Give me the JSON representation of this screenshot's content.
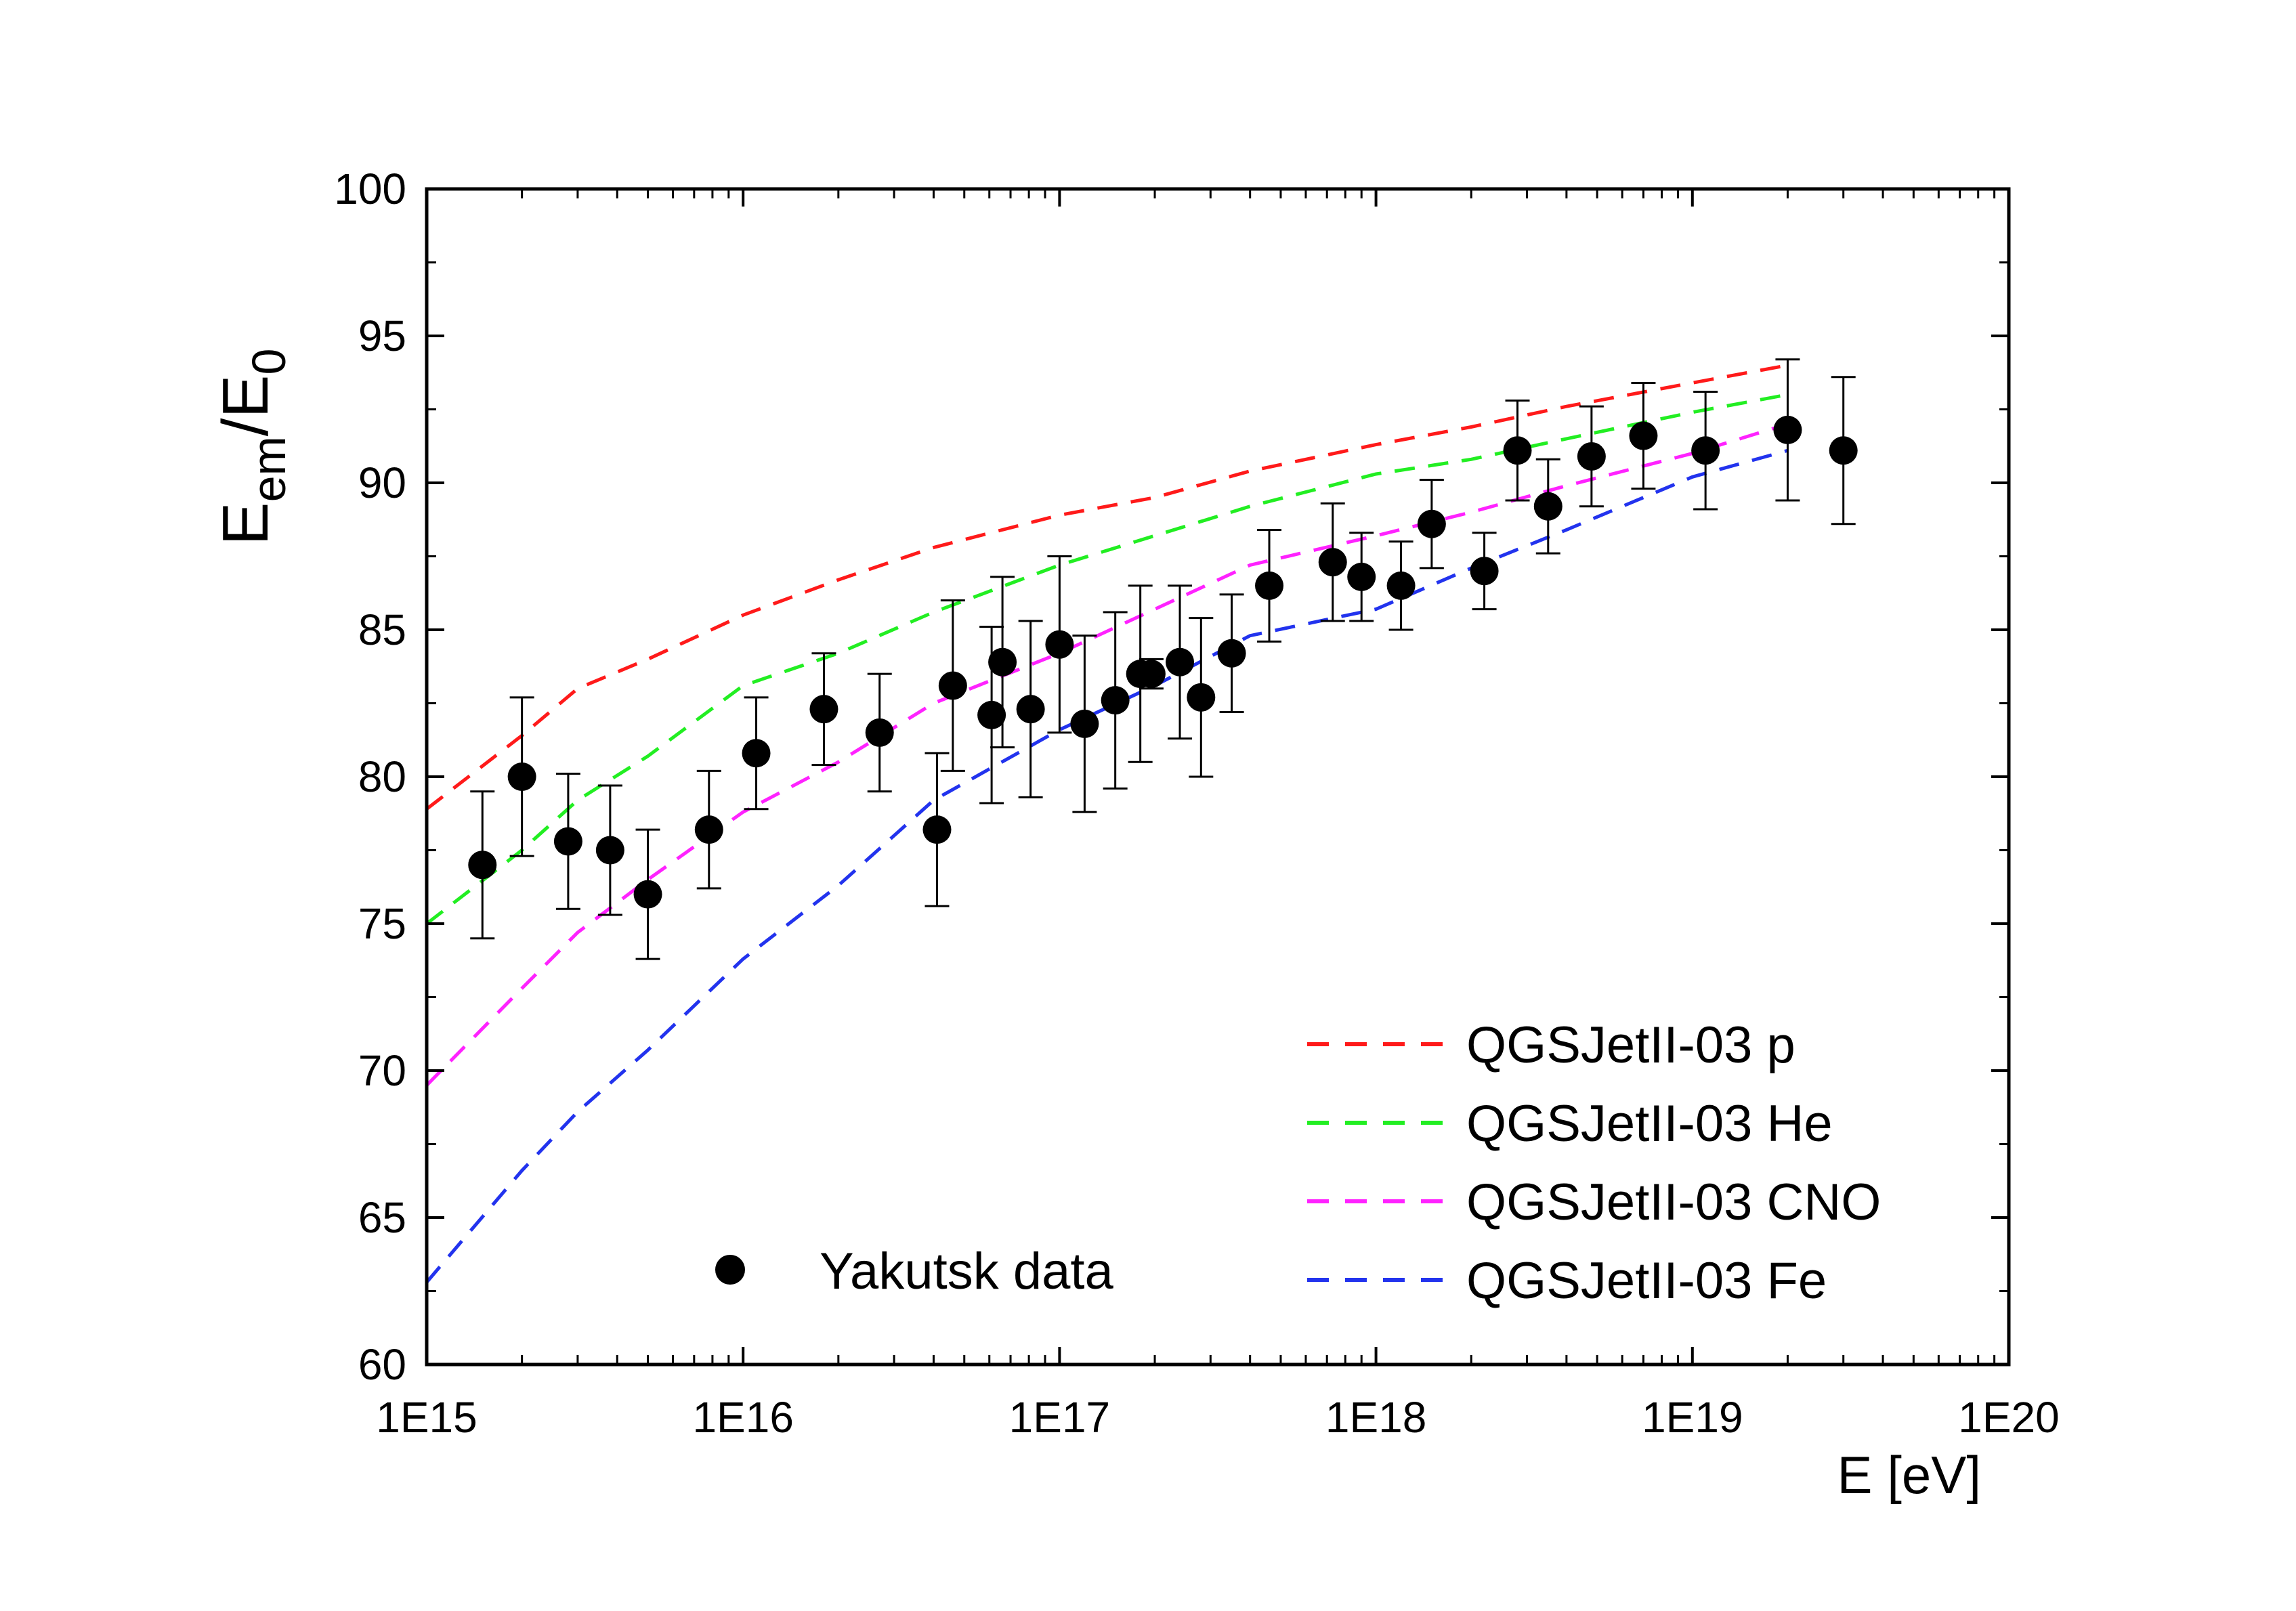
{
  "chart_data": {
    "type": "scatter",
    "title": "",
    "xlabel": "E  [eV]",
    "ylabel": {
      "base": "E",
      "sub": "em",
      "sep": "/",
      "base2": "E",
      "sub2": "0"
    },
    "xscale": "log",
    "xlim": [
      1000000000000000.0,
      1e+20
    ],
    "ylim": [
      60,
      100
    ],
    "x_ticks": [
      {
        "value": 1000000000000000.0,
        "label": "1E15"
      },
      {
        "value": 1e+16,
        "label": "1E16"
      },
      {
        "value": 1e+17,
        "label": "1E17"
      },
      {
        "value": 1e+18,
        "label": "1E18"
      },
      {
        "value": 1e+19,
        "label": "1E19"
      },
      {
        "value": 1e+20,
        "label": "1E20"
      }
    ],
    "y_ticks": [
      {
        "value": 60,
        "label": "60"
      },
      {
        "value": 65,
        "label": "65"
      },
      {
        "value": 70,
        "label": "70"
      },
      {
        "value": 75,
        "label": "75"
      },
      {
        "value": 80,
        "label": "80"
      },
      {
        "value": 85,
        "label": "85"
      },
      {
        "value": 90,
        "label": "90"
      },
      {
        "value": 95,
        "label": "95"
      },
      {
        "value": 100,
        "label": "100"
      }
    ],
    "points": {
      "name": "Yakutsk data",
      "color": "#000000",
      "data": [
        {
          "x": 1500000000000000.0,
          "y": 77.0,
          "err": 2.5
        },
        {
          "x": 2000000000000000.0,
          "y": 80.0,
          "err": 2.7
        },
        {
          "x": 2800000000000000.0,
          "y": 77.8,
          "err": 2.3
        },
        {
          "x": 3800000000000000.0,
          "y": 77.5,
          "err": 2.2
        },
        {
          "x": 5000000000000000.0,
          "y": 76.0,
          "err": 2.2
        },
        {
          "x": 7800000000000000.0,
          "y": 78.2,
          "err": 2.0
        },
        {
          "x": 1.1e+16,
          "y": 80.8,
          "err": 1.9
        },
        {
          "x": 1.8e+16,
          "y": 82.3,
          "err": 1.9
        },
        {
          "x": 2.7e+16,
          "y": 81.5,
          "err": 2.0
        },
        {
          "x": 4.1e+16,
          "y": 78.2,
          "err": 2.6
        },
        {
          "x": 4.6e+16,
          "y": 83.1,
          "err": 2.9
        },
        {
          "x": 6.1e+16,
          "y": 82.1,
          "err": 3.0
        },
        {
          "x": 6.6e+16,
          "y": 83.9,
          "err": 2.9
        },
        {
          "x": 8.1e+16,
          "y": 82.3,
          "err": 3.0
        },
        {
          "x": 1e+17,
          "y": 84.5,
          "err": 3.0
        },
        {
          "x": 1.2e+17,
          "y": 81.8,
          "err": 3.0
        },
        {
          "x": 1.5e+17,
          "y": 82.6,
          "err": 3.0
        },
        {
          "x": 1.8e+17,
          "y": 83.5,
          "err": 3.0
        },
        {
          "x": 1.95e+17,
          "y": 83.5,
          "err": 0.5
        },
        {
          "x": 2.4e+17,
          "y": 83.9,
          "err": 2.6
        },
        {
          "x": 2.8e+17,
          "y": 82.7,
          "err": 2.7
        },
        {
          "x": 3.5e+17,
          "y": 84.2,
          "err": 2.0
        },
        {
          "x": 4.6e+17,
          "y": 86.5,
          "err": 1.9
        },
        {
          "x": 7.3e+17,
          "y": 87.3,
          "err": 2.0
        },
        {
          "x": 9e+17,
          "y": 86.8,
          "err": 1.5
        },
        {
          "x": 1.2e+18,
          "y": 86.5,
          "err": 1.5
        },
        {
          "x": 1.5e+18,
          "y": 88.6,
          "err": 1.5
        },
        {
          "x": 2.2e+18,
          "y": 87.0,
          "err": 1.3
        },
        {
          "x": 2.8e+18,
          "y": 91.1,
          "err": 1.7
        },
        {
          "x": 3.5e+18,
          "y": 89.2,
          "err": 1.6
        },
        {
          "x": 4.8e+18,
          "y": 90.9,
          "err": 1.7
        },
        {
          "x": 7e+18,
          "y": 91.6,
          "err": 1.8
        },
        {
          "x": 1.1e+19,
          "y": 91.1,
          "err": 2.0
        },
        {
          "x": 2e+19,
          "y": 91.8,
          "err": 2.4
        },
        {
          "x": 3e+19,
          "y": 91.1,
          "err": 2.5
        }
      ]
    },
    "series": [
      {
        "name": "QGSJetII-03 p",
        "color": "#ff1a1a",
        "x": [
          1000000000000000.0,
          2000000000000000.0,
          3000000000000000.0,
          5000000000000000.0,
          1e+16,
          2e+16,
          4e+16,
          1e+17,
          2e+17,
          4e+17,
          1e+18,
          2e+18,
          4e+18,
          1e+19,
          2e+19
        ],
        "y": [
          78.9,
          81.4,
          83.0,
          84.0,
          85.5,
          86.7,
          87.8,
          88.9,
          89.5,
          90.4,
          91.3,
          91.9,
          92.6,
          93.4,
          94.0
        ]
      },
      {
        "name": "QGSJetII-03 He",
        "color": "#22ee22",
        "x": [
          1000000000000000.0,
          2000000000000000.0,
          3000000000000000.0,
          5000000000000000.0,
          1e+16,
          2e+16,
          4e+16,
          1e+17,
          2e+17,
          4e+17,
          1e+18,
          2e+18,
          4e+18,
          1e+19,
          2e+19
        ],
        "y": [
          75.0,
          77.5,
          79.2,
          80.7,
          83.1,
          84.2,
          85.6,
          87.2,
          88.2,
          89.2,
          90.3,
          90.8,
          91.5,
          92.4,
          93.0
        ]
      },
      {
        "name": "QGSJetII-03 CNO",
        "color": "#ff22ff",
        "x": [
          1000000000000000.0,
          2000000000000000.0,
          3000000000000000.0,
          5000000000000000.0,
          1e+16,
          2e+16,
          4e+16,
          1e+17,
          2e+17,
          4e+17,
          1e+18,
          2e+18,
          4e+18,
          1e+19,
          2e+19
        ],
        "y": [
          69.5,
          72.8,
          74.7,
          76.5,
          78.8,
          80.5,
          82.5,
          84.2,
          85.7,
          87.2,
          88.2,
          89.0,
          89.9,
          91.0,
          92.0
        ]
      },
      {
        "name": "QGSJetII-03 Fe",
        "color": "#2233ee",
        "x": [
          1000000000000000.0,
          2000000000000000.0,
          3000000000000000.0,
          5000000000000000.0,
          1e+16,
          2e+16,
          4e+16,
          1e+17,
          2e+17,
          4e+17,
          1e+18,
          2e+18,
          4e+18,
          1e+19,
          2e+19
        ],
        "y": [
          62.8,
          66.6,
          68.6,
          70.7,
          73.8,
          76.3,
          79.2,
          81.6,
          83.1,
          84.8,
          85.7,
          87.1,
          88.4,
          90.2,
          91.1
        ]
      }
    ],
    "legend": {
      "curves_position": "bottom-right",
      "points_position": "bottom-left"
    }
  }
}
